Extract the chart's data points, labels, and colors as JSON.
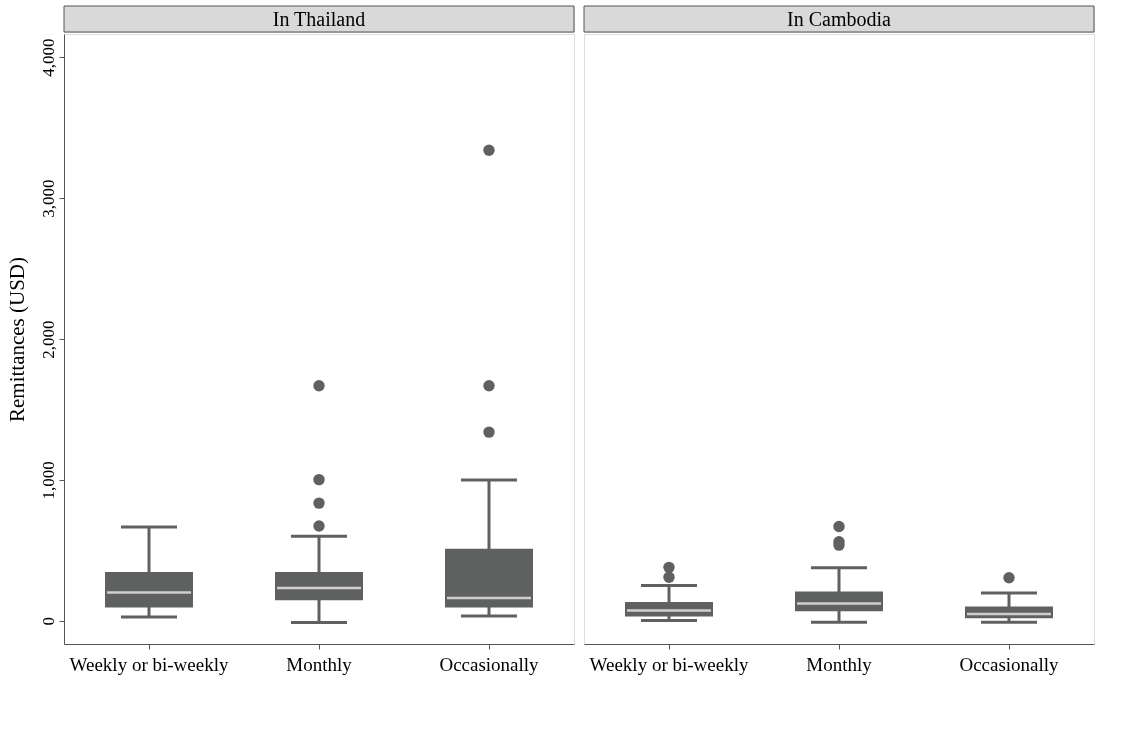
{
  "chart_data": [
    {
      "type": "box",
      "title": "In Thailand",
      "ylabel": "Remittances (USD)",
      "categories": [
        "Weekly or bi-weekly",
        "Monthly",
        "Occasionally"
      ],
      "color": "#5f6060",
      "ylim": [
        -165,
        4165
      ],
      "yticks": [
        0,
        {
          "value": 1000,
          "label": "1,000"
        },
        {
          "value": 2000,
          "label": "2,000"
        },
        {
          "value": 3000,
          "label": "3,000"
        },
        {
          "value": 4000,
          "label": "4,000"
        }
      ],
      "grid": false,
      "boxes": [
        {
          "low": 26,
          "q1": 94,
          "median": 200,
          "q3": 346,
          "high": 666
        },
        {
          "low": -12,
          "q1": 146,
          "median": 233,
          "q3": 346,
          "high": 600,
          "outliers": [
            673,
            835,
            1002,
            1668
          ]
        },
        {
          "low": 33,
          "q1": 94,
          "median": 162,
          "q3": 511,
          "high": 1000,
          "outliers": [
            1339,
            1668,
            3340
          ]
        }
      ]
    },
    {
      "type": "box",
      "title": "In Cambodia",
      "categories": [
        "Weekly or bi-weekly",
        "Monthly",
        "Occasionally"
      ],
      "color": "#5f6060",
      "ylim": [
        -165,
        4165
      ],
      "tick_labels": "x",
      "grid": false,
      "boxes": [
        {
          "low": 2,
          "q1": 31,
          "median": 72,
          "q3": 134,
          "high": 250,
          "outliers": [
            309,
            379
          ]
        },
        {
          "low": -11,
          "q1": 68,
          "median": 123,
          "q3": 208,
          "high": 377,
          "outliers": [
            537,
            561,
            669
          ]
        },
        {
          "low": -11,
          "q1": 18,
          "median": 48,
          "q3": 101,
          "high": 197,
          "outliers": [
            305
          ]
        }
      ]
    }
  ]
}
